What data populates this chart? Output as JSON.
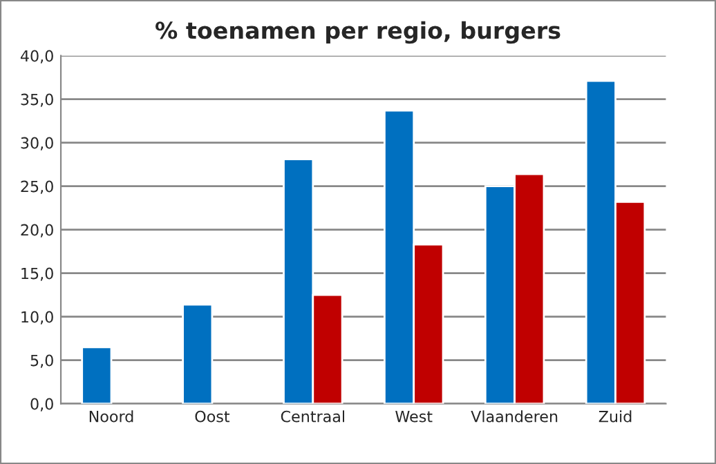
{
  "chart_data": {
    "type": "bar",
    "title": "% toenamen per regio, burgers",
    "categories": [
      "Noord",
      "Oost",
      "Centraal",
      "West",
      "Vlaanderen",
      "Zuid"
    ],
    "series": [
      {
        "color": "#0070c0",
        "values": [
          6.5,
          11.4,
          28.1,
          33.7,
          25.0,
          37.1
        ]
      },
      {
        "color": "#c00000",
        "values": [
          null,
          null,
          12.5,
          18.3,
          26.4,
          23.2
        ]
      }
    ],
    "ylim": [
      0,
      40
    ],
    "yticks": [
      {
        "value": 0,
        "label": "0,0"
      },
      {
        "value": 5,
        "label": "5,0"
      },
      {
        "value": 10,
        "label": "10,0"
      },
      {
        "value": 15,
        "label": "15,0"
      },
      {
        "value": 20,
        "label": "20,0"
      },
      {
        "value": 25,
        "label": "25,0"
      },
      {
        "value": 30,
        "label": "30,0"
      },
      {
        "value": 35,
        "label": "35,0"
      },
      {
        "value": 40,
        "label": "40,0"
      }
    ],
    "grid": "y",
    "legend": false
  }
}
